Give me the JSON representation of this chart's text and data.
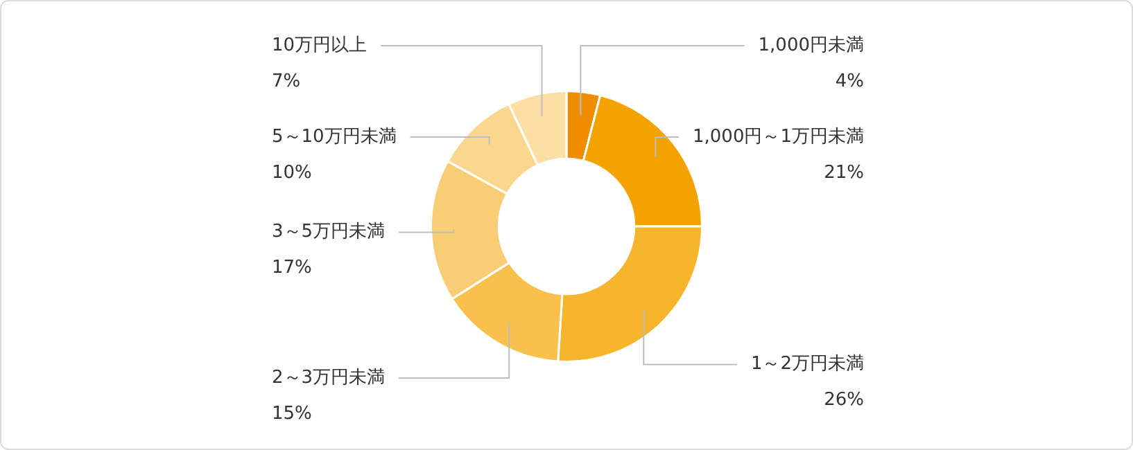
{
  "chart_data": {
    "type": "donut",
    "categories": [
      "1,000円未満",
      "1,000円～1万円未満",
      "1～2万円未満",
      "2～3万円未満",
      "3～5万円未満",
      "5～10万円未満",
      "10万円以上"
    ],
    "values": [
      4,
      21,
      26,
      15,
      17,
      10,
      7
    ],
    "value_labels": [
      "4%",
      "21%",
      "26%",
      "15%",
      "17%",
      "10%",
      "7%"
    ],
    "colors": [
      "#ef8c00",
      "#f4a200",
      "#f6b52c",
      "#f8c04c",
      "#f9cd76",
      "#fad68e",
      "#fbdfa5"
    ]
  }
}
